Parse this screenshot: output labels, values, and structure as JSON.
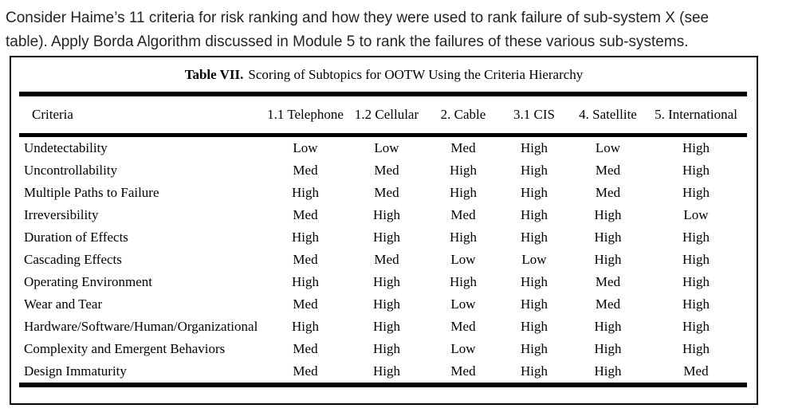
{
  "question": {
    "line1": "Consider Haime’s 11 criteria for risk ranking and how they were used to rank failure of sub-system X (see",
    "line2": "table). Apply Borda Algorithm discussed in Module 5 to rank the failures of these various sub-systems."
  },
  "table": {
    "title_label": "Table VII.",
    "title_text": "Scoring of Subtopics for OOTW Using the Criteria Hierarchy",
    "columns": [
      "Criteria",
      "1.1 Telephone",
      "1.2 Cellular",
      "2. Cable",
      "3.1 CIS",
      "4. Satellite",
      "5. International"
    ],
    "rows": [
      {
        "criteria": "Undetectability",
        "values": [
          "Low",
          "Low",
          "Med",
          "High",
          "Low",
          "High"
        ]
      },
      {
        "criteria": "Uncontrollability",
        "values": [
          "Med",
          "Med",
          "High",
          "High",
          "Med",
          "High"
        ]
      },
      {
        "criteria": "Multiple Paths to Failure",
        "values": [
          "High",
          "Med",
          "High",
          "High",
          "Med",
          "High"
        ]
      },
      {
        "criteria": "Irreversibility",
        "values": [
          "Med",
          "High",
          "Med",
          "High",
          "High",
          "Low"
        ]
      },
      {
        "criteria": "Duration of Effects",
        "values": [
          "High",
          "High",
          "High",
          "High",
          "High",
          "High"
        ]
      },
      {
        "criteria": "Cascading Effects",
        "values": [
          "Med",
          "Med",
          "Low",
          "Low",
          "High",
          "High"
        ]
      },
      {
        "criteria": "Operating Environment",
        "values": [
          "High",
          "High",
          "High",
          "High",
          "Med",
          "High"
        ]
      },
      {
        "criteria": "Wear and Tear",
        "values": [
          "Med",
          "High",
          "Low",
          "High",
          "Med",
          "High"
        ]
      },
      {
        "criteria": "Hardware/Software/Human/Organizational",
        "values": [
          "High",
          "High",
          "Med",
          "High",
          "High",
          "High"
        ]
      },
      {
        "criteria": "Complexity and Emergent Behaviors",
        "values": [
          "Med",
          "High",
          "Low",
          "High",
          "High",
          "High"
        ]
      },
      {
        "criteria": "Design Immaturity",
        "values": [
          "Med",
          "High",
          "Med",
          "High",
          "High",
          "Med"
        ]
      }
    ]
  }
}
